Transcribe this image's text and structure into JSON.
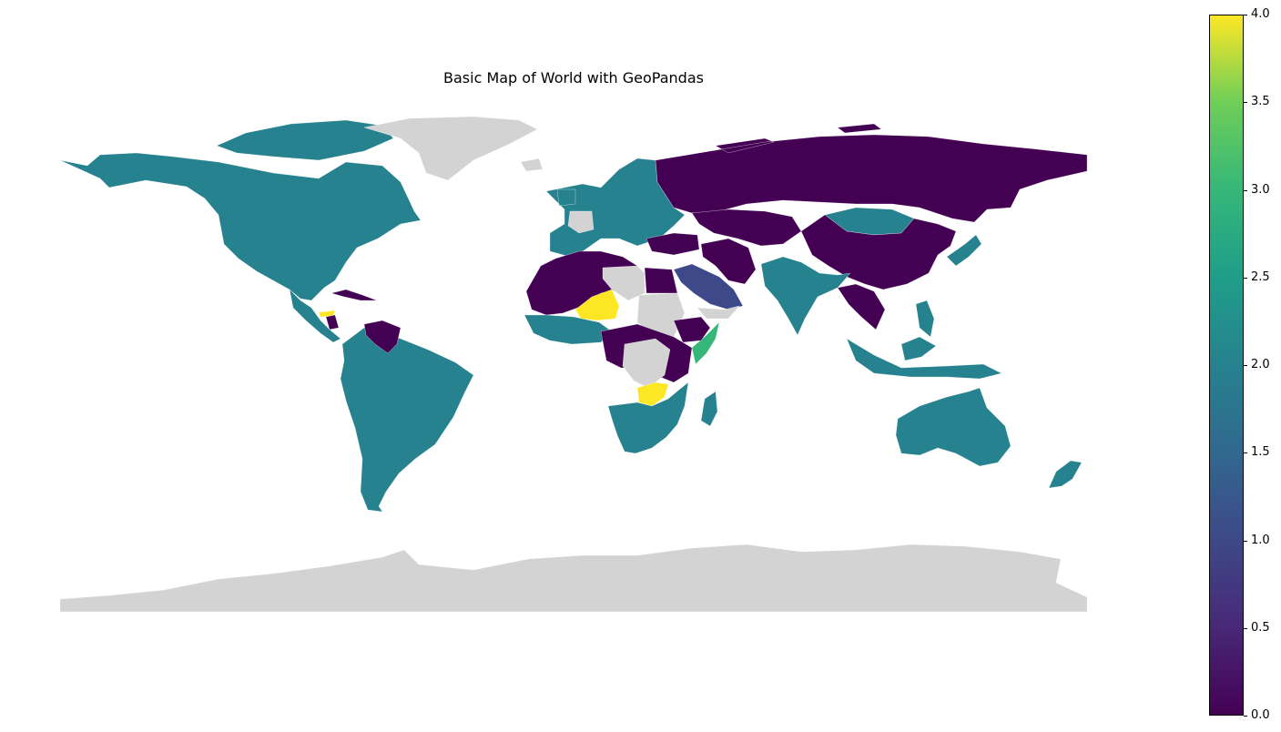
{
  "figure": {
    "title": "Basic Map of World with GeoPandas"
  },
  "chart_data": {
    "type": "choropleth",
    "title": "Basic Map of World with GeoPandas",
    "colormap": "viridis",
    "missing_color": "#d3d3d3",
    "colorbar": {
      "min": 0.0,
      "max": 4.0,
      "ticks": [
        "0.0",
        "0.5",
        "1.0",
        "1.5",
        "2.0",
        "2.5",
        "3.0",
        "3.5",
        "4.0"
      ]
    },
    "regions": [
      {
        "name": "North America",
        "value": 2.0
      },
      {
        "name": "Greenland",
        "value": null
      },
      {
        "name": "Central America",
        "value": 2.0
      },
      {
        "name": "Honduras",
        "value": 4.0
      },
      {
        "name": "Nicaragua",
        "value": 0.0
      },
      {
        "name": "Cuba",
        "value": 0.0
      },
      {
        "name": "South America",
        "value": 2.0
      },
      {
        "name": "Venezuela",
        "value": 0.0
      },
      {
        "name": "Europe",
        "value": 2.0
      },
      {
        "name": "France",
        "value": null
      },
      {
        "name": "Iceland",
        "value": null
      },
      {
        "name": "Russia",
        "value": 0.0
      },
      {
        "name": "Mongolia",
        "value": 2.0
      },
      {
        "name": "China",
        "value": 0.0
      },
      {
        "name": "Japan",
        "value": 2.0
      },
      {
        "name": "India",
        "value": 2.0
      },
      {
        "name": "Southeast Asia",
        "value": 0.0
      },
      {
        "name": "Indonesia",
        "value": 2.0
      },
      {
        "name": "Philippines",
        "value": 2.0
      },
      {
        "name": "Saudi Arabia",
        "value": 1.0
      },
      {
        "name": "Yemen",
        "value": null
      },
      {
        "name": "Turkey",
        "value": 0.0
      },
      {
        "name": "Iran",
        "value": 0.0
      },
      {
        "name": "Central Asia",
        "value": 0.0
      },
      {
        "name": "North-West Africa",
        "value": 0.0
      },
      {
        "name": "Libya",
        "value": null
      },
      {
        "name": "Egypt",
        "value": 0.0
      },
      {
        "name": "Niger",
        "value": 4.0
      },
      {
        "name": "West Africa",
        "value": 2.0
      },
      {
        "name": "Sudan",
        "value": null
      },
      {
        "name": "Central Africa",
        "value": 0.0
      },
      {
        "name": "DR Congo",
        "value": null
      },
      {
        "name": "Somalia",
        "value": 3.0
      },
      {
        "name": "Ethiopia",
        "value": 0.0
      },
      {
        "name": "Zambia",
        "value": 4.0
      },
      {
        "name": "Southern Africa",
        "value": 2.0
      },
      {
        "name": "Madagascar",
        "value": 2.0
      },
      {
        "name": "Australia",
        "value": 2.0
      },
      {
        "name": "New Zealand",
        "value": 2.0
      },
      {
        "name": "Antarctica",
        "value": null
      }
    ]
  }
}
